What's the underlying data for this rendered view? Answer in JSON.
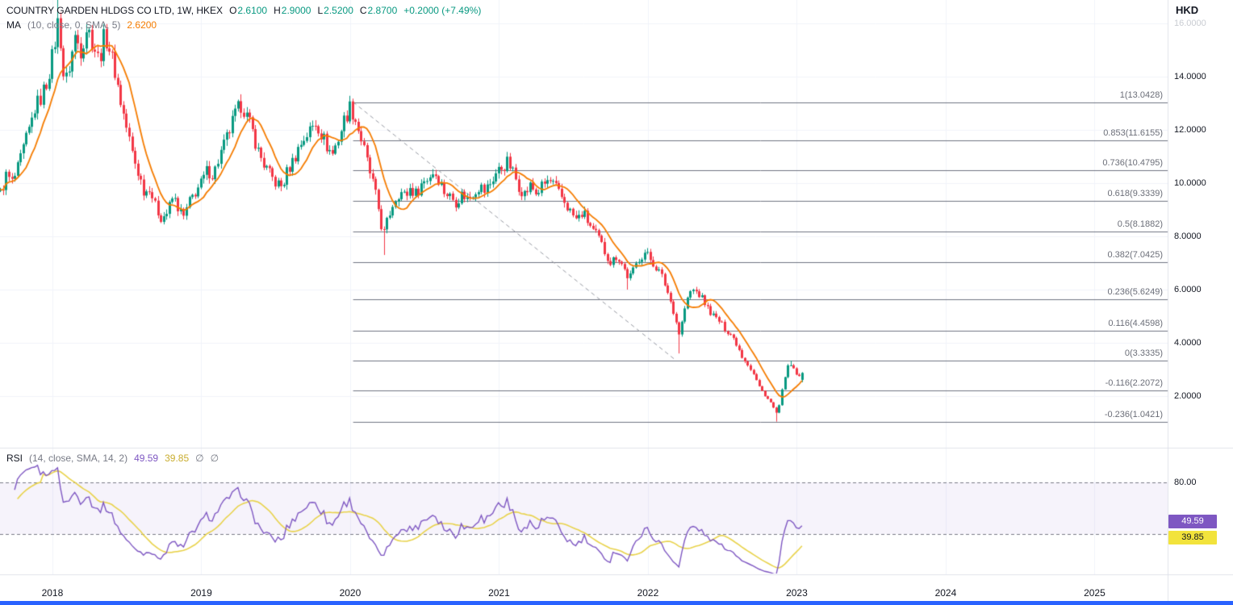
{
  "header": {
    "title": "COUNTRY GARDEN HLDGS CO LTD, 1W, HKEX",
    "ohlc": [
      {
        "label": "O",
        "value": "2.6100"
      },
      {
        "label": "H",
        "value": "2.9000"
      },
      {
        "label": "L",
        "value": "2.5200"
      },
      {
        "label": "C",
        "value": "2.8700"
      }
    ],
    "change": "+0.2000 (+7.49%)",
    "ma": {
      "name": "MA",
      "params": "(10, close, 0, SMA, 5)",
      "value": "2.6200"
    }
  },
  "rsi_legend": {
    "name": "RSI",
    "params": "(14, close, SMA, 14, 2)",
    "value": "49.59",
    "ma_value": "39.85",
    "empty": [
      "∅",
      "∅"
    ]
  },
  "chart_data": {
    "type": "candlestick",
    "title": "COUNTRY GARDEN HLDGS CO LTD",
    "interval": "1W",
    "exchange": "HKEX",
    "currency": "HKD",
    "last_bar": {
      "open": 2.61,
      "high": 2.9,
      "low": 2.52,
      "close": 2.87
    },
    "change": "+0.2000 (+7.49%)",
    "ma_period": 10,
    "ma_last": 2.62,
    "x_domain": [
      2017.648,
      2025.49
    ],
    "x_ticks": [
      {
        "t": 2018,
        "label": "2018"
      },
      {
        "t": 2019,
        "label": "2019"
      },
      {
        "t": 2020,
        "label": "2020"
      },
      {
        "t": 2021,
        "label": "2021"
      },
      {
        "t": 2022,
        "label": "2022"
      },
      {
        "t": 2023,
        "label": "2023"
      },
      {
        "t": 2024,
        "label": "2024"
      },
      {
        "t": 2025,
        "label": "2025"
      }
    ],
    "price_ticks": [
      {
        "v": 16,
        "label": "16.0000",
        "faded": true
      },
      {
        "v": 14,
        "label": "14.0000"
      },
      {
        "v": 12,
        "label": "12.0000"
      },
      {
        "v": 10,
        "label": "10.0000"
      },
      {
        "v": 8,
        "label": "8.0000"
      },
      {
        "v": 6,
        "label": "6.0000"
      },
      {
        "v": 4,
        "label": "4.0000"
      },
      {
        "v": 2,
        "label": "2.0000"
      }
    ],
    "fib": {
      "start_t": 2020.02,
      "levels": [
        {
          "ratio": 1,
          "price": 13.0428,
          "label": "1(13.0428)"
        },
        {
          "ratio": 0.853,
          "price": 11.6155,
          "label": "0.853(11.6155)"
        },
        {
          "ratio": 0.736,
          "price": 10.4795,
          "label": "0.736(10.4795)"
        },
        {
          "ratio": 0.618,
          "price": 9.3339,
          "label": "0.618(9.3339)"
        },
        {
          "ratio": 0.5,
          "price": 8.1882,
          "label": "0.5(8.1882)"
        },
        {
          "ratio": 0.382,
          "price": 7.0425,
          "label": "0.382(7.0425)"
        },
        {
          "ratio": 0.236,
          "price": 5.6249,
          "label": "0.236(5.6249)"
        },
        {
          "ratio": 0.116,
          "price": 4.4598,
          "label": "0.116(4.4598)"
        },
        {
          "ratio": 0,
          "price": 3.3335,
          "label": "0(3.3335)"
        },
        {
          "ratio": -0.116,
          "price": 2.2072,
          "label": "-0.116(2.2072)"
        },
        {
          "ratio": -0.236,
          "price": 1.0421,
          "label": "-0.236(1.0421)"
        }
      ]
    },
    "trendline": {
      "t1": 2020.02,
      "p1": 13.0428,
      "t2": 2022.19,
      "p2": 3.3335,
      "style": "dashed"
    },
    "weekly_close_anchors_t_price": [
      [
        2017.65,
        9.6
      ],
      [
        2017.69,
        10.3
      ],
      [
        2017.73,
        10.0
      ],
      [
        2017.77,
        10.6
      ],
      [
        2017.81,
        11.4
      ],
      [
        2017.85,
        12.1
      ],
      [
        2017.88,
        12.8
      ],
      [
        2017.92,
        13.2
      ],
      [
        2017.96,
        13.8
      ],
      [
        2018.0,
        14.8
      ],
      [
        2018.04,
        16.2
      ],
      [
        2018.06,
        15.0
      ],
      [
        2018.08,
        13.6
      ],
      [
        2018.12,
        14.6
      ],
      [
        2018.15,
        15.5
      ],
      [
        2018.19,
        15.0
      ],
      [
        2018.23,
        15.9
      ],
      [
        2018.27,
        15.3
      ],
      [
        2018.31,
        14.6
      ],
      [
        2018.35,
        15.6
      ],
      [
        2018.38,
        15.1
      ],
      [
        2018.42,
        14.2
      ],
      [
        2018.46,
        13.0
      ],
      [
        2018.5,
        12.0
      ],
      [
        2018.54,
        11.0
      ],
      [
        2018.58,
        10.3
      ],
      [
        2018.62,
        9.6
      ],
      [
        2018.65,
        9.9
      ],
      [
        2018.69,
        9.1
      ],
      [
        2018.73,
        8.7
      ],
      [
        2018.77,
        8.9
      ],
      [
        2018.81,
        9.5
      ],
      [
        2018.85,
        9.0
      ],
      [
        2018.88,
        8.7
      ],
      [
        2018.92,
        9.3
      ],
      [
        2018.96,
        9.7
      ],
      [
        2019.0,
        10.0
      ],
      [
        2019.04,
        10.5
      ],
      [
        2019.08,
        10.3
      ],
      [
        2019.12,
        11.0
      ],
      [
        2019.15,
        11.4
      ],
      [
        2019.19,
        12.0
      ],
      [
        2019.23,
        12.6
      ],
      [
        2019.27,
        13.0
      ],
      [
        2019.31,
        12.4
      ],
      [
        2019.35,
        11.8
      ],
      [
        2019.38,
        11.2
      ],
      [
        2019.42,
        10.7
      ],
      [
        2019.46,
        10.3
      ],
      [
        2019.5,
        10.0
      ],
      [
        2019.54,
        9.85
      ],
      [
        2019.58,
        10.5
      ],
      [
        2019.62,
        10.9
      ],
      [
        2019.65,
        11.3
      ],
      [
        2019.69,
        11.7
      ],
      [
        2019.73,
        12.0
      ],
      [
        2019.77,
        12.3
      ],
      [
        2019.81,
        11.8
      ],
      [
        2019.85,
        11.3
      ],
      [
        2019.88,
        11.1
      ],
      [
        2019.92,
        11.7
      ],
      [
        2019.96,
        12.4
      ],
      [
        2020.0,
        12.9
      ],
      [
        2020.04,
        12.3
      ],
      [
        2020.08,
        11.5
      ],
      [
        2020.12,
        10.6
      ],
      [
        2020.15,
        10.0
      ],
      [
        2020.19,
        9.0
      ],
      [
        2020.22,
        8.0
      ],
      [
        2020.25,
        8.6
      ],
      [
        2020.29,
        9.3
      ],
      [
        2020.33,
        9.7
      ],
      [
        2020.37,
        9.5
      ],
      [
        2020.4,
        9.8
      ],
      [
        2020.44,
        9.6
      ],
      [
        2020.48,
        10.0
      ],
      [
        2020.52,
        10.2
      ],
      [
        2020.56,
        10.45
      ],
      [
        2020.6,
        10.1
      ],
      [
        2020.63,
        9.7
      ],
      [
        2020.67,
        9.5
      ],
      [
        2020.71,
        9.3
      ],
      [
        2020.75,
        9.6
      ],
      [
        2020.79,
        9.4
      ],
      [
        2020.83,
        9.7
      ],
      [
        2020.87,
        9.9
      ],
      [
        2020.9,
        9.7
      ],
      [
        2020.94,
        10.0
      ],
      [
        2020.98,
        10.4
      ],
      [
        2021.02,
        10.6
      ],
      [
        2021.06,
        10.8
      ],
      [
        2021.1,
        10.3
      ],
      [
        2021.13,
        9.9
      ],
      [
        2021.17,
        9.6
      ],
      [
        2021.21,
        9.9
      ],
      [
        2021.25,
        9.6
      ],
      [
        2021.29,
        9.9
      ],
      [
        2021.33,
        10.1
      ],
      [
        2021.37,
        9.9
      ],
      [
        2021.4,
        9.6
      ],
      [
        2021.44,
        9.3
      ],
      [
        2021.48,
        8.9
      ],
      [
        2021.52,
        8.6
      ],
      [
        2021.56,
        8.9
      ],
      [
        2021.6,
        8.5
      ],
      [
        2021.63,
        8.2
      ],
      [
        2021.67,
        7.9
      ],
      [
        2021.71,
        7.4
      ],
      [
        2021.75,
        7.0
      ],
      [
        2021.79,
        7.3
      ],
      [
        2021.83,
        6.9
      ],
      [
        2021.87,
        6.4
      ],
      [
        2021.9,
        6.7
      ],
      [
        2021.94,
        7.2
      ],
      [
        2021.98,
        7.4
      ],
      [
        2022.02,
        7.1
      ],
      [
        2022.06,
        6.8
      ],
      [
        2022.1,
        6.4
      ],
      [
        2022.13,
        5.9
      ],
      [
        2022.17,
        5.2
      ],
      [
        2022.21,
        4.3
      ],
      [
        2022.25,
        5.4
      ],
      [
        2022.29,
        6.0
      ],
      [
        2022.33,
        5.9
      ],
      [
        2022.37,
        5.6
      ],
      [
        2022.4,
        5.3
      ],
      [
        2022.44,
        5.0
      ],
      [
        2022.48,
        4.8
      ],
      [
        2022.52,
        4.5
      ],
      [
        2022.56,
        4.3
      ],
      [
        2022.6,
        3.9
      ],
      [
        2022.63,
        3.5
      ],
      [
        2022.67,
        3.2
      ],
      [
        2022.71,
        2.8
      ],
      [
        2022.75,
        2.3
      ],
      [
        2022.79,
        2.0
      ],
      [
        2022.83,
        1.7
      ],
      [
        2022.86,
        1.35
      ],
      [
        2022.88,
        1.6
      ],
      [
        2022.9,
        2.2
      ],
      [
        2022.92,
        2.8
      ],
      [
        2022.94,
        3.1
      ],
      [
        2022.96,
        3.15
      ],
      [
        2022.98,
        2.95
      ],
      [
        2023.0,
        2.8
      ],
      [
        2023.02,
        2.67
      ],
      [
        2023.04,
        2.87
      ]
    ],
    "wick_overrides": [
      {
        "t": 2018.04,
        "high": 17.0
      },
      {
        "t": 2019.27,
        "high": 13.25
      },
      {
        "t": 2020.0,
        "high": 13.0428
      },
      {
        "t": 2020.22,
        "low": 7.3
      },
      {
        "t": 2021.87,
        "low": 6.0
      },
      {
        "t": 2022.21,
        "low": 3.6
      },
      {
        "t": 2022.86,
        "low": 1.0421
      },
      {
        "t": 2022.96,
        "high": 3.3335
      }
    ],
    "rsi": {
      "length": 14,
      "last": "49.59",
      "ma_last": "39.85",
      "bands": [
        80,
        40
      ],
      "axis_tick_label": "80.00"
    },
    "colors": {
      "up": "#089981",
      "down": "#f23645",
      "ma": "#f57c00",
      "rsi": "#7e57c2",
      "rsi_ma": "#e8d24a",
      "fib_line": "#6f7380",
      "fib_text": "#6b6e78",
      "trendline": "#9598a1",
      "grid": "#f0f3fa",
      "divider": "#e0e3eb",
      "band_line": "#787b86",
      "band_fill": "rgba(126,87,194,0.07)",
      "badge_rsi": "#7e57c2",
      "badge_rsi_ma": "#f2e33c",
      "accent_bar": "#2962ff"
    }
  }
}
